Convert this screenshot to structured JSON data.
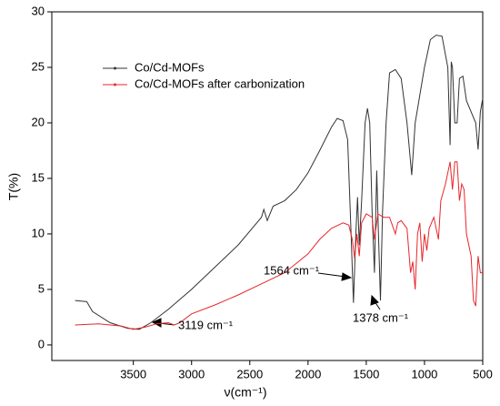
{
  "chart_data": {
    "type": "line",
    "xlabel": "ν(cm⁻¹)",
    "ylabel": "T(%)",
    "xlim": [
      4200,
      500
    ],
    "ylim": [
      -1.4,
      30
    ],
    "xticks": [
      3500,
      3000,
      2500,
      2000,
      1500,
      1000,
      500
    ],
    "yticks": [
      0,
      5,
      10,
      15,
      20,
      25,
      30
    ],
    "annotations": [
      "1564 cm⁻¹",
      "1378 cm⁻¹",
      "3119 cm⁻¹"
    ],
    "series": [
      {
        "name": "Co/Cd-MOFs",
        "color": "#333333",
        "x": [
          4000,
          3900,
          3850,
          3700,
          3550,
          3450,
          3350,
          3200,
          3000,
          2800,
          2600,
          2400,
          2380,
          2350,
          2300,
          2200,
          2100,
          2000,
          1900,
          1800,
          1750,
          1700,
          1660,
          1630,
          1610,
          1590,
          1575,
          1560,
          1540,
          1510,
          1490,
          1470,
          1450,
          1430,
          1410,
          1395,
          1378,
          1360,
          1330,
          1300,
          1250,
          1200,
          1150,
          1110,
          1080,
          1000,
          950,
          900,
          850,
          800,
          780,
          770,
          760,
          740,
          720,
          700,
          670,
          640,
          600,
          560,
          540,
          520,
          500
        ],
        "values": [
          4.0,
          3.9,
          3.0,
          2.0,
          1.5,
          1.4,
          2.0,
          3.2,
          5.0,
          7.0,
          9.0,
          11.5,
          12.2,
          11.2,
          12.5,
          13.0,
          14.0,
          15.5,
          17.5,
          19.6,
          20.4,
          20.2,
          18.5,
          10.0,
          3.8,
          10.0,
          13.3,
          9.0,
          13.0,
          20.0,
          21.3,
          20.0,
          12.0,
          6.5,
          15.7,
          10.0,
          4.0,
          12.0,
          20.0,
          24.5,
          24.8,
          24.0,
          20.0,
          15.3,
          20.0,
          25.0,
          27.5,
          27.9,
          27.8,
          25.0,
          18.0,
          25.5,
          25.0,
          20.0,
          20.0,
          24.0,
          24.2,
          22.0,
          21.0,
          20.0,
          17.6,
          21.0,
          22.2
        ]
      },
      {
        "name": "Co/Cd-MOFs after carbonization",
        "color": "#e8262a",
        "x": [
          4000,
          3800,
          3600,
          3500,
          3400,
          3300,
          3200,
          3150,
          3100,
          3000,
          2800,
          2600,
          2400,
          2200,
          2000,
          1900,
          1800,
          1700,
          1650,
          1620,
          1600,
          1580,
          1560,
          1540,
          1500,
          1450,
          1430,
          1400,
          1350,
          1300,
          1250,
          1230,
          1200,
          1150,
          1120,
          1100,
          1080,
          1060,
          1040,
          1020,
          1000,
          980,
          960,
          920,
          880,
          860,
          820,
          780,
          760,
          740,
          720,
          700,
          680,
          660,
          640,
          600,
          580,
          560,
          540,
          520,
          500
        ],
        "values": [
          1.8,
          1.9,
          1.7,
          1.4,
          1.6,
          1.9,
          2.0,
          1.8,
          2.0,
          2.8,
          3.6,
          4.5,
          5.5,
          6.5,
          8.2,
          9.5,
          10.5,
          11.0,
          10.8,
          9.5,
          7.8,
          10.0,
          8.0,
          11.0,
          11.8,
          11.5,
          9.5,
          11.8,
          11.5,
          11.5,
          10.0,
          11.0,
          11.2,
          10.5,
          6.5,
          7.5,
          5.0,
          10.0,
          11.0,
          7.5,
          10.0,
          8.5,
          10.5,
          11.5,
          9.5,
          13.0,
          14.5,
          16.5,
          14.0,
          16.5,
          16.5,
          13.0,
          14.5,
          14.0,
          10.0,
          8.0,
          4.0,
          3.5,
          8.0,
          6.5,
          6.5
        ]
      }
    ]
  }
}
